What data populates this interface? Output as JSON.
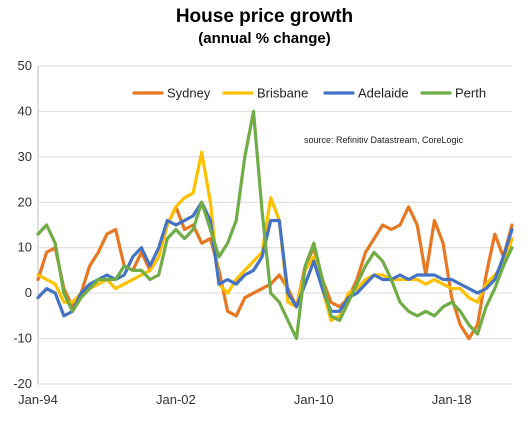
{
  "chart_data": {
    "type": "line",
    "title": "House price growth",
    "subtitle": "(annual % change)",
    "xlabel": "",
    "ylabel": "",
    "source": "source:  Refinitiv Datastream,  CoreLogic",
    "ylim": [
      -20,
      50
    ],
    "yticks": [
      "50",
      "40",
      "30",
      "20",
      "10",
      "0",
      "-10",
      "-20"
    ],
    "xlim": [
      1994.0,
      2021.5
    ],
    "xticks": [
      {
        "label": "Jan-94",
        "x": 1994
      },
      {
        "label": "Jan-02",
        "x": 2002
      },
      {
        "label": "Jan-10",
        "x": 2010
      },
      {
        "label": "Jan-18",
        "x": 2018
      }
    ],
    "grid": true,
    "legend_position": "top",
    "series": [
      {
        "name": "Sydney",
        "color": "#E87722",
        "points": [
          [
            1994,
            3
          ],
          [
            1994.5,
            9
          ],
          [
            1995,
            10
          ],
          [
            1995.5,
            1
          ],
          [
            1996,
            -3
          ],
          [
            1996.5,
            0
          ],
          [
            1997,
            6
          ],
          [
            1997.5,
            9
          ],
          [
            1998,
            13
          ],
          [
            1998.5,
            14
          ],
          [
            1999,
            6
          ],
          [
            1999.5,
            5
          ],
          [
            2000,
            9
          ],
          [
            2000.5,
            5
          ],
          [
            2001,
            8
          ],
          [
            2001.5,
            15
          ],
          [
            2002,
            19
          ],
          [
            2002.5,
            14
          ],
          [
            2003,
            15
          ],
          [
            2003.5,
            11
          ],
          [
            2004,
            12
          ],
          [
            2004.5,
            5
          ],
          [
            2005,
            -4
          ],
          [
            2005.5,
            -5
          ],
          [
            2006,
            -1
          ],
          [
            2006.5,
            0
          ],
          [
            2007,
            1
          ],
          [
            2007.5,
            2
          ],
          [
            2008,
            4
          ],
          [
            2008.5,
            1
          ],
          [
            2009,
            -3
          ],
          [
            2009.5,
            6
          ],
          [
            2010,
            10
          ],
          [
            2010.5,
            3
          ],
          [
            2011,
            -2
          ],
          [
            2011.5,
            -3
          ],
          [
            2012,
            -1
          ],
          [
            2012.5,
            3
          ],
          [
            2013,
            9
          ],
          [
            2013.5,
            12
          ],
          [
            2014,
            15
          ],
          [
            2014.5,
            14
          ],
          [
            2015,
            15
          ],
          [
            2015.5,
            19
          ],
          [
            2016,
            15
          ],
          [
            2016.5,
            4
          ],
          [
            2017,
            16
          ],
          [
            2017.5,
            11
          ],
          [
            2018,
            -1
          ],
          [
            2018.5,
            -7
          ],
          [
            2019,
            -10
          ],
          [
            2019.5,
            -7
          ],
          [
            2020,
            4
          ],
          [
            2020.5,
            13
          ],
          [
            2021,
            8
          ],
          [
            2021.5,
            15
          ]
        ]
      },
      {
        "name": "Brisbane",
        "color": "#FFC000",
        "points": [
          [
            1994,
            4
          ],
          [
            1994.5,
            3
          ],
          [
            1995,
            2
          ],
          [
            1995.5,
            -2
          ],
          [
            1996,
            -2
          ],
          [
            1996.5,
            0
          ],
          [
            1997,
            1
          ],
          [
            1997.5,
            2
          ],
          [
            1998,
            3
          ],
          [
            1998.5,
            1
          ],
          [
            1999,
            2
          ],
          [
            1999.5,
            3
          ],
          [
            2000,
            4
          ],
          [
            2000.5,
            5
          ],
          [
            2001,
            8
          ],
          [
            2001.5,
            15
          ],
          [
            2002,
            19
          ],
          [
            2002.5,
            21
          ],
          [
            2003,
            22
          ],
          [
            2003.5,
            31
          ],
          [
            2004,
            20
          ],
          [
            2004.5,
            2
          ],
          [
            2005,
            0
          ],
          [
            2005.5,
            3
          ],
          [
            2006,
            5
          ],
          [
            2006.5,
            7
          ],
          [
            2007,
            9
          ],
          [
            2007.5,
            21
          ],
          [
            2008,
            16
          ],
          [
            2008.5,
            -2
          ],
          [
            2009,
            -3
          ],
          [
            2009.5,
            5
          ],
          [
            2010,
            8
          ],
          [
            2010.5,
            1
          ],
          [
            2011,
            -6
          ],
          [
            2011.5,
            -5
          ],
          [
            2012,
            0
          ],
          [
            2012.5,
            1
          ],
          [
            2013,
            3
          ],
          [
            2013.5,
            4
          ],
          [
            2014,
            4
          ],
          [
            2014.5,
            3
          ],
          [
            2015,
            3
          ],
          [
            2015.5,
            3
          ],
          [
            2016,
            3
          ],
          [
            2016.5,
            2
          ],
          [
            2017,
            3
          ],
          [
            2017.5,
            2
          ],
          [
            2018,
            1
          ],
          [
            2018.5,
            1
          ],
          [
            2019,
            -1
          ],
          [
            2019.5,
            -2
          ],
          [
            2020,
            2
          ],
          [
            2020.5,
            4
          ],
          [
            2021,
            6
          ],
          [
            2021.5,
            12
          ]
        ]
      },
      {
        "name": "Adelaide",
        "color": "#4472C4",
        "points": [
          [
            1994,
            -1
          ],
          [
            1994.5,
            1
          ],
          [
            1995,
            0
          ],
          [
            1995.5,
            -5
          ],
          [
            1996,
            -4
          ],
          [
            1996.5,
            0
          ],
          [
            1997,
            2
          ],
          [
            1997.5,
            3
          ],
          [
            1998,
            4
          ],
          [
            1998.5,
            3
          ],
          [
            1999,
            4
          ],
          [
            1999.5,
            8
          ],
          [
            2000,
            10
          ],
          [
            2000.5,
            6
          ],
          [
            2001,
            10
          ],
          [
            2001.5,
            16
          ],
          [
            2002,
            15
          ],
          [
            2002.5,
            16
          ],
          [
            2003,
            17
          ],
          [
            2003.5,
            20
          ],
          [
            2004,
            16
          ],
          [
            2004.5,
            2
          ],
          [
            2005,
            3
          ],
          [
            2005.5,
            2
          ],
          [
            2006,
            4
          ],
          [
            2006.5,
            5
          ],
          [
            2007,
            8
          ],
          [
            2007.5,
            16
          ],
          [
            2008,
            16
          ],
          [
            2008.5,
            0
          ],
          [
            2009,
            -3
          ],
          [
            2009.5,
            2
          ],
          [
            2010,
            7
          ],
          [
            2010.5,
            1
          ],
          [
            2011,
            -4
          ],
          [
            2011.5,
            -4
          ],
          [
            2012,
            -1
          ],
          [
            2012.5,
            0
          ],
          [
            2013,
            2
          ],
          [
            2013.5,
            4
          ],
          [
            2014,
            3
          ],
          [
            2014.5,
            3
          ],
          [
            2015,
            4
          ],
          [
            2015.5,
            3
          ],
          [
            2016,
            4
          ],
          [
            2016.5,
            4
          ],
          [
            2017,
            4
          ],
          [
            2017.5,
            3
          ],
          [
            2018,
            3
          ],
          [
            2018.5,
            2
          ],
          [
            2019,
            1
          ],
          [
            2019.5,
            0
          ],
          [
            2020,
            1
          ],
          [
            2020.5,
            3
          ],
          [
            2021,
            8
          ],
          [
            2021.5,
            14
          ]
        ]
      },
      {
        "name": "Perth",
        "color": "#70AD47",
        "points": [
          [
            1994,
            13
          ],
          [
            1994.5,
            15
          ],
          [
            1995,
            11
          ],
          [
            1995.5,
            0
          ],
          [
            1996,
            -4
          ],
          [
            1996.5,
            -1
          ],
          [
            1997,
            1
          ],
          [
            1997.5,
            3
          ],
          [
            1998,
            3
          ],
          [
            1998.5,
            3
          ],
          [
            1999,
            6
          ],
          [
            1999.5,
            5
          ],
          [
            2000,
            5
          ],
          [
            2000.5,
            3
          ],
          [
            2001,
            4
          ],
          [
            2001.5,
            12
          ],
          [
            2002,
            14
          ],
          [
            2002.5,
            12
          ],
          [
            2003,
            14
          ],
          [
            2003.5,
            20
          ],
          [
            2004,
            14
          ],
          [
            2004.5,
            8
          ],
          [
            2005,
            11
          ],
          [
            2005.5,
            16
          ],
          [
            2006,
            30
          ],
          [
            2006.5,
            40
          ],
          [
            2007,
            18
          ],
          [
            2007.5,
            0
          ],
          [
            2008,
            -2
          ],
          [
            2008.5,
            -6
          ],
          [
            2009,
            -10
          ],
          [
            2009.5,
            6
          ],
          [
            2010,
            11
          ],
          [
            2010.5,
            3
          ],
          [
            2011,
            -5
          ],
          [
            2011.5,
            -6
          ],
          [
            2012,
            -2
          ],
          [
            2012.5,
            2
          ],
          [
            2013,
            6
          ],
          [
            2013.5,
            9
          ],
          [
            2014,
            7
          ],
          [
            2014.5,
            3
          ],
          [
            2015,
            -2
          ],
          [
            2015.5,
            -4
          ],
          [
            2016,
            -5
          ],
          [
            2016.5,
            -4
          ],
          [
            2017,
            -5
          ],
          [
            2017.5,
            -3
          ],
          [
            2018,
            -2
          ],
          [
            2018.5,
            -4
          ],
          [
            2019,
            -7
          ],
          [
            2019.5,
            -9
          ],
          [
            2020,
            -3
          ],
          [
            2020.5,
            1
          ],
          [
            2021,
            6
          ],
          [
            2021.5,
            10
          ]
        ]
      }
    ]
  }
}
